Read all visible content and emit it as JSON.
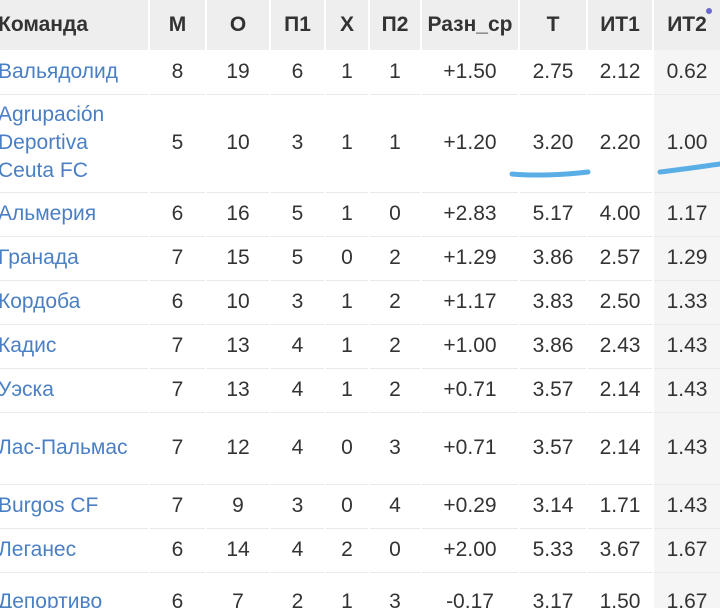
{
  "table": {
    "columns": [
      "Команда",
      "М",
      "О",
      "П1",
      "Х",
      "П2",
      "Разн_ср",
      "Т",
      "ИТ1",
      "ИТ2"
    ],
    "rows": [
      {
        "team": "Вальядолид",
        "m": "8",
        "o": "19",
        "p1": "6",
        "x": "1",
        "p2": "1",
        "diff": "+1.50",
        "t": "2.75",
        "it1": "2.12",
        "it2": "0.62"
      },
      {
        "team": "Agrupación Deportiva Ceuta FC",
        "m": "5",
        "o": "10",
        "p1": "3",
        "x": "1",
        "p2": "1",
        "diff": "+1.20",
        "t": "3.20",
        "it1": "2.20",
        "it2": "1.00"
      },
      {
        "team": "Альмерия",
        "m": "6",
        "o": "16",
        "p1": "5",
        "x": "1",
        "p2": "0",
        "diff": "+2.83",
        "t": "5.17",
        "it1": "4.00",
        "it2": "1.17"
      },
      {
        "team": "Гранада",
        "m": "7",
        "o": "15",
        "p1": "5",
        "x": "0",
        "p2": "2",
        "diff": "+1.29",
        "t": "3.86",
        "it1": "2.57",
        "it2": "1.29"
      },
      {
        "team": "Кордоба",
        "m": "6",
        "o": "10",
        "p1": "3",
        "x": "1",
        "p2": "2",
        "diff": "+1.17",
        "t": "3.83",
        "it1": "2.50",
        "it2": "1.33"
      },
      {
        "team": "Кадис",
        "m": "7",
        "o": "13",
        "p1": "4",
        "x": "1",
        "p2": "2",
        "diff": "+1.00",
        "t": "3.86",
        "it1": "2.43",
        "it2": "1.43"
      },
      {
        "team": "Уэска",
        "m": "7",
        "o": "13",
        "p1": "4",
        "x": "1",
        "p2": "2",
        "diff": "+0.71",
        "t": "3.57",
        "it1": "2.14",
        "it2": "1.43"
      },
      {
        "team": "Лас-Пальмас",
        "m": "7",
        "o": "12",
        "p1": "4",
        "x": "0",
        "p2": "3",
        "diff": "+0.71",
        "t": "3.57",
        "it1": "2.14",
        "it2": "1.43"
      },
      {
        "team": "Burgos CF",
        "m": "7",
        "o": "9",
        "p1": "3",
        "x": "0",
        "p2": "4",
        "diff": "+0.29",
        "t": "3.14",
        "it1": "1.71",
        "it2": "1.43"
      },
      {
        "team": "Леганес",
        "m": "6",
        "o": "14",
        "p1": "4",
        "x": "2",
        "p2": "0",
        "diff": "+2.00",
        "t": "5.33",
        "it1": "3.67",
        "it2": "1.67"
      },
      {
        "team": "Депортиво",
        "m": "6",
        "o": "7",
        "p1": "2",
        "x": "1",
        "p2": "3",
        "diff": "-0.17",
        "t": "3.17",
        "it1": "1.50",
        "it2": "1.67"
      }
    ]
  },
  "colors": {
    "team_link": "#4a7fc4",
    "header_bg": "#eeeeee",
    "highlight_column_bg": "#f5f5f5",
    "annotation_stroke": "#5aaee6"
  },
  "annotations": [
    {
      "type": "underline",
      "target": "t",
      "row": 1
    },
    {
      "type": "underline",
      "target": "it2",
      "row": 1
    }
  ]
}
